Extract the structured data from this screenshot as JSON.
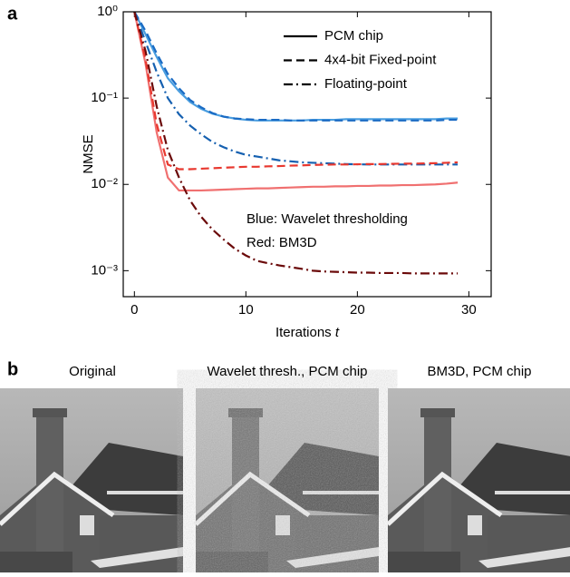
{
  "panel_a": {
    "label": "a"
  },
  "chart_data": {
    "type": "line",
    "ylog": true,
    "x": [
      0,
      1,
      2,
      3,
      4,
      5,
      6,
      7,
      8,
      9,
      10,
      11,
      12,
      13,
      14,
      15,
      16,
      17,
      18,
      19,
      20,
      21,
      22,
      23,
      24,
      25,
      26,
      27,
      28,
      29
    ],
    "xlim": [
      -1,
      32
    ],
    "xticks": [
      0,
      10,
      20,
      30
    ],
    "ylim": [
      0.0005,
      1
    ],
    "yticks": [
      {
        "value": 1,
        "label": "10⁰"
      },
      {
        "value": 0.1,
        "label": "10⁻¹"
      },
      {
        "value": 0.01,
        "label": "10⁻²"
      },
      {
        "value": 0.001,
        "label": "10⁻³"
      }
    ],
    "x_label": "Iterations",
    "x_label_var": "t",
    "y_label": "NMSE",
    "legend_position": "upper right",
    "annotations": [
      {
        "text": "Blue: Wavelet thresholding",
        "color": "#2a7fd4"
      },
      {
        "text": "Red: BM3D",
        "color": "#e8383a"
      }
    ],
    "series": [
      {
        "name": "PCM chip",
        "dash": "solid",
        "color": "#4a9ee0",
        "values": [
          1,
          0.55,
          0.3,
          0.17,
          0.12,
          0.09,
          0.075,
          0.066,
          0.061,
          0.058,
          0.056,
          0.055,
          0.055,
          0.055,
          0.055,
          0.055,
          0.056,
          0.056,
          0.056,
          0.057,
          0.057,
          0.057,
          0.057,
          0.057,
          0.057,
          0.057,
          0.057,
          0.057,
          0.058,
          0.058
        ]
      },
      {
        "name": "4x4-bit Fixed-point",
        "dash": "dashed",
        "color": "#1a6bc4",
        "values": [
          1,
          0.6,
          0.33,
          0.19,
          0.13,
          0.095,
          0.078,
          0.067,
          0.061,
          0.058,
          0.057,
          0.056,
          0.056,
          0.056,
          0.055,
          0.055,
          0.055,
          0.055,
          0.055,
          0.055,
          0.055,
          0.055,
          0.055,
          0.055,
          0.055,
          0.055,
          0.055,
          0.055,
          0.056,
          0.056
        ]
      },
      {
        "name": "Floating-point",
        "dash": "dashdot",
        "color": "#1560b0",
        "values": [
          1,
          0.45,
          0.2,
          0.1,
          0.065,
          0.048,
          0.038,
          0.031,
          0.027,
          0.024,
          0.022,
          0.021,
          0.02,
          0.019,
          0.0185,
          0.018,
          0.0178,
          0.0176,
          0.0174,
          0.0172,
          0.0171,
          0.017,
          0.017,
          0.017,
          0.017,
          0.017,
          0.017,
          0.017,
          0.017,
          0.017
        ]
      },
      {
        "name": "PCM chip",
        "dash": "solid",
        "color": "#f07070",
        "values": [
          1,
          0.25,
          0.04,
          0.012,
          0.0085,
          0.0085,
          0.0085,
          0.0086,
          0.0087,
          0.0088,
          0.0089,
          0.009,
          0.009,
          0.0091,
          0.0092,
          0.0093,
          0.0094,
          0.0094,
          0.0095,
          0.0095,
          0.0096,
          0.0096,
          0.0097,
          0.0097,
          0.0098,
          0.0098,
          0.0099,
          0.01,
          0.0102,
          0.0105
        ]
      },
      {
        "name": "4x4-bit Fixed-point",
        "dash": "dashed",
        "color": "#e8382f",
        "values": [
          1,
          0.28,
          0.05,
          0.017,
          0.015,
          0.015,
          0.0152,
          0.0154,
          0.0156,
          0.0158,
          0.016,
          0.016,
          0.0162,
          0.0163,
          0.0165,
          0.0166,
          0.0168,
          0.0169,
          0.017,
          0.017,
          0.0171,
          0.0172,
          0.0172,
          0.0173,
          0.0174,
          0.0174,
          0.0175,
          0.0176,
          0.0178,
          0.018
        ]
      },
      {
        "name": "Floating-point",
        "dash": "dashdot",
        "color": "#6b0a0a",
        "values": [
          1,
          0.35,
          0.08,
          0.025,
          0.012,
          0.0065,
          0.0042,
          0.003,
          0.0023,
          0.0018,
          0.0015,
          0.0013,
          0.00122,
          0.00115,
          0.0011,
          0.00105,
          0.001,
          0.00098,
          0.00097,
          0.00096,
          0.00095,
          0.00095,
          0.00094,
          0.00094,
          0.00094,
          0.00093,
          0.00093,
          0.00093,
          0.00093,
          0.00093
        ]
      }
    ]
  },
  "panel_b": {
    "label": "b",
    "captions": [
      "Original",
      "Wavelet thresh., PCM chip",
      "BM3D, PCM chip"
    ]
  }
}
